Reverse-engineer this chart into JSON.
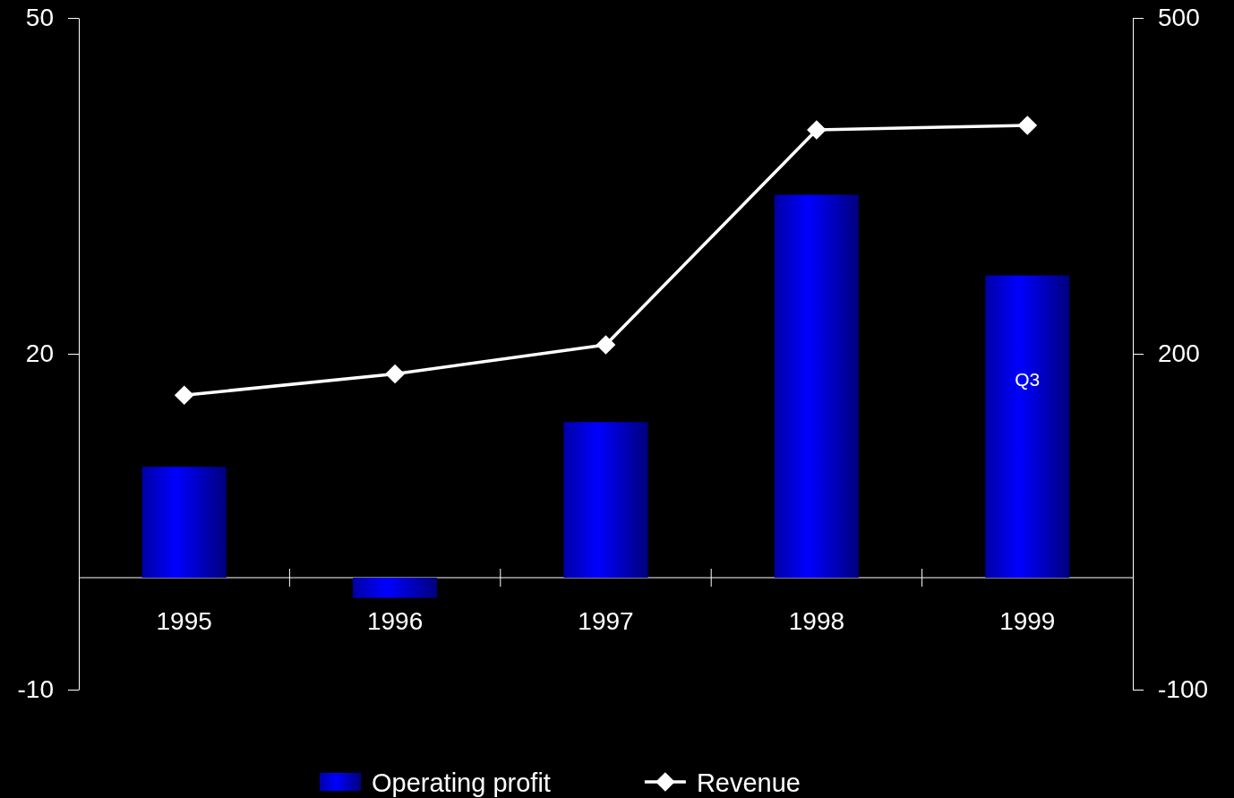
{
  "chart_data": {
    "type": "bar",
    "categories": [
      "1995",
      "1996",
      "1997",
      "1998",
      "1999"
    ],
    "series": [
      {
        "name": "Operating profit",
        "color": "#0000ff",
        "values": [
          9.9,
          -1.8,
          13.9,
          34.2,
          27.0
        ]
      },
      {
        "name": "Revenue",
        "type": "line",
        "axis": "y2",
        "color": "#ffffff",
        "marker": "diamond",
        "values": [
          163,
          182,
          208,
          400,
          404
        ]
      }
    ],
    "ylim": [
      -10,
      50
    ],
    "yticks": [
      -10,
      20,
      50
    ],
    "y2lim": [
      -100,
      500
    ],
    "y2ticks": [
      -100,
      200,
      500
    ],
    "annotations": [
      "Q3"
    ],
    "legend": "bottom",
    "grid": false
  }
}
